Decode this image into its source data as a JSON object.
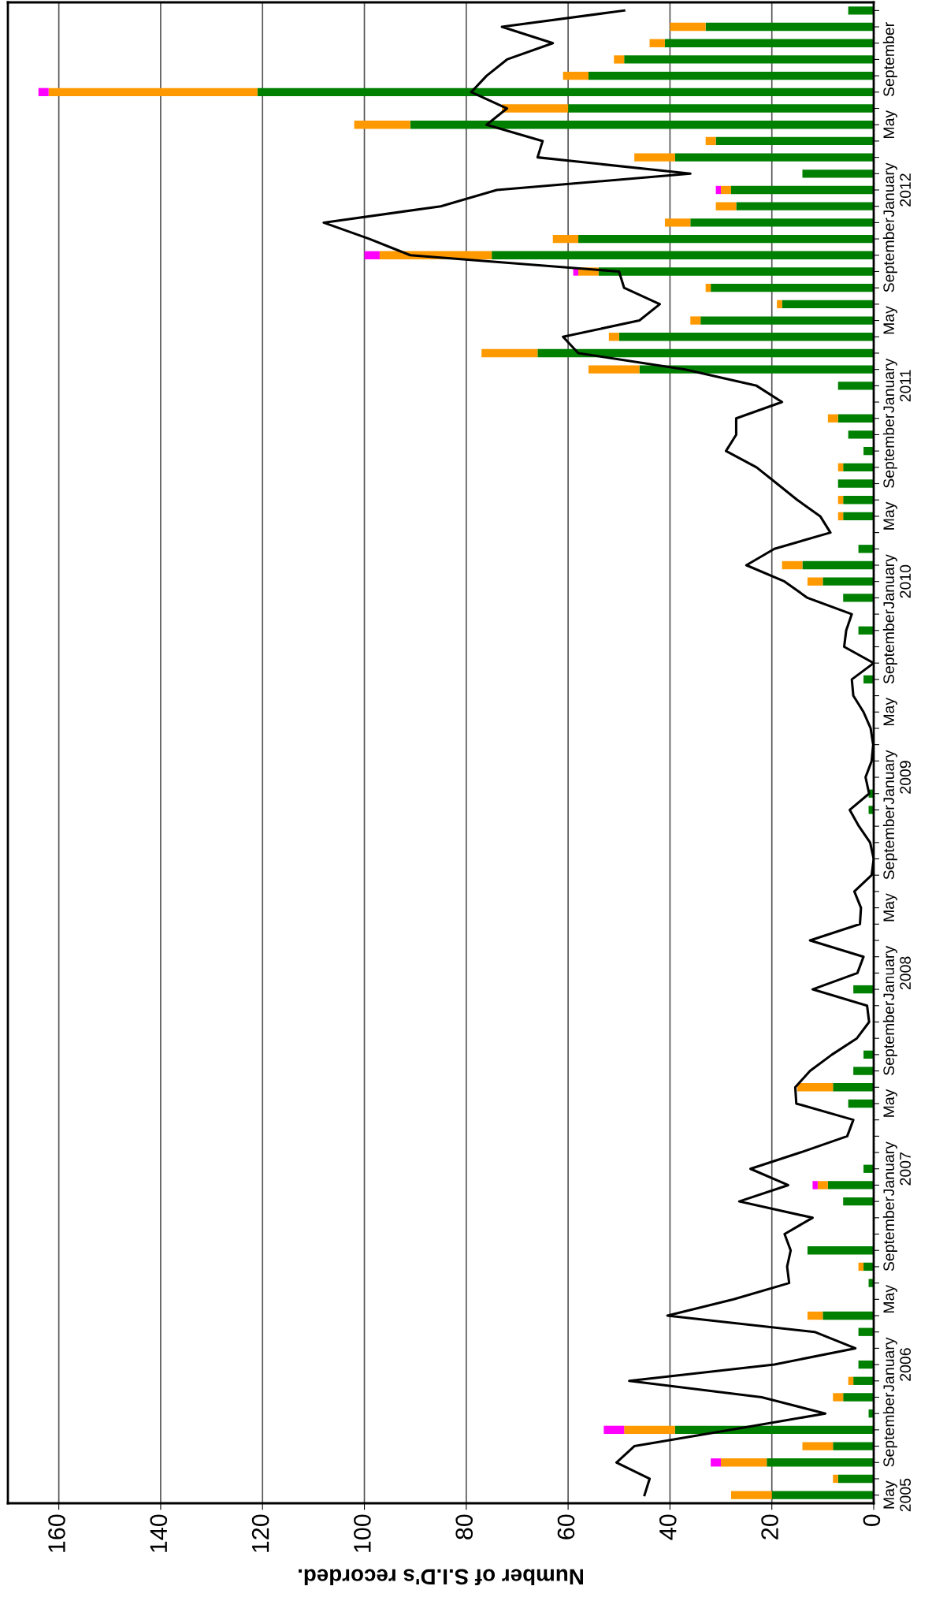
{
  "chart_data": {
    "type": "bar",
    "orientation": "horizontal",
    "stacked": true,
    "xlabel": "Number of S.I.D's recorded.",
    "categories": [
      null,
      null,
      null,
      "September",
      null,
      null,
      null,
      "May",
      null,
      null,
      null,
      "January\n2012",
      null,
      null,
      null,
      "September",
      null,
      null,
      null,
      "May",
      null,
      null,
      null,
      "January\n2011",
      null,
      null,
      null,
      "September",
      null,
      null,
      null,
      "May",
      null,
      null,
      null,
      "January\n2010",
      null,
      null,
      null,
      "September",
      null,
      null,
      null,
      "May",
      null,
      null,
      null,
      "January\n2009",
      null,
      null,
      null,
      "September",
      null,
      null,
      null,
      "May",
      null,
      null,
      null,
      "January\n2008",
      null,
      null,
      null,
      "September",
      null,
      null,
      null,
      "May",
      null,
      null,
      null,
      "January\n2007",
      null,
      null,
      null,
      "September",
      null,
      null,
      null,
      "May",
      null,
      null,
      null,
      "January\n2006",
      null,
      null,
      null,
      "September",
      null,
      null,
      null,
      "May\n2005"
    ],
    "series": [
      {
        "color": "#008000",
        "values": [
          5,
          33,
          41,
          49,
          56,
          121,
          60,
          91,
          31,
          39,
          14,
          28,
          27,
          36,
          58,
          75,
          54,
          32,
          18,
          34,
          50,
          66,
          46,
          7,
          null,
          7,
          5,
          2,
          6,
          7,
          6,
          6,
          null,
          3,
          14,
          10,
          6,
          null,
          3,
          null,
          null,
          2,
          null,
          null,
          null,
          null,
          null,
          null,
          1,
          1,
          null,
          null,
          null,
          null,
          null,
          null,
          null,
          null,
          null,
          null,
          4,
          null,
          null,
          null,
          2,
          4,
          8,
          5,
          null,
          null,
          null,
          2,
          9,
          6,
          null,
          null,
          13,
          2,
          1,
          null,
          10,
          3,
          null,
          3,
          4,
          6,
          1,
          39,
          8,
          21,
          7,
          20
        ]
      },
      {
        "color": "#ff9900",
        "values": [
          null,
          7,
          3,
          2,
          5,
          41,
          13,
          11,
          2,
          8,
          null,
          2,
          4,
          5,
          5,
          22,
          4,
          1,
          1,
          2,
          2,
          11,
          10,
          null,
          null,
          2,
          null,
          null,
          1,
          null,
          1,
          1,
          null,
          null,
          4,
          3,
          null,
          null,
          null,
          null,
          null,
          null,
          null,
          null,
          null,
          null,
          null,
          null,
          null,
          null,
          null,
          null,
          null,
          null,
          null,
          null,
          null,
          null,
          null,
          null,
          null,
          null,
          null,
          null,
          null,
          null,
          7,
          null,
          null,
          null,
          null,
          null,
          2,
          null,
          null,
          null,
          null,
          1,
          null,
          null,
          3,
          null,
          null,
          null,
          1,
          2,
          null,
          10,
          6,
          9,
          1,
          8
        ]
      },
      {
        "color": "#ff00ff",
        "values": [
          null,
          null,
          null,
          null,
          null,
          2,
          null,
          null,
          null,
          null,
          null,
          1,
          null,
          null,
          null,
          3,
          1,
          null,
          null,
          null,
          null,
          null,
          null,
          null,
          null,
          null,
          null,
          null,
          null,
          null,
          null,
          null,
          null,
          null,
          null,
          null,
          null,
          null,
          null,
          null,
          null,
          null,
          null,
          null,
          null,
          null,
          null,
          null,
          null,
          null,
          null,
          null,
          null,
          null,
          null,
          null,
          null,
          null,
          null,
          null,
          null,
          null,
          null,
          null,
          null,
          null,
          null,
          null,
          null,
          null,
          null,
          null,
          1,
          null,
          null,
          null,
          null,
          null,
          null,
          null,
          null,
          null,
          null,
          null,
          null,
          null,
          null,
          4,
          null,
          2,
          null,
          null
        ]
      },
      {
        "type": "line",
        "color": "#000000",
        "values": [
          49,
          73,
          63,
          72,
          76,
          79,
          72,
          76,
          65,
          66,
          36,
          74,
          85,
          108,
          99,
          91,
          50,
          49,
          42,
          46,
          61,
          58,
          37,
          23,
          18,
          27,
          27,
          29,
          23,
          19,
          15,
          10.5,
          8.5,
          19.5,
          25,
          17.5,
          13,
          4.3,
          5.4,
          5.8,
          0,
          4.3,
          4,
          2,
          0.6,
          0.1,
          0.4,
          1.6,
          0.9,
          4.7,
          2.9,
          0.7,
          0,
          0.4,
          3.8,
          2.5,
          2.7,
          12.5,
          2,
          3.2,
          12,
          1.3,
          0.9,
          3.3,
          8.2,
          12.5,
          15.4,
          15.2,
          4,
          5.2,
          14.4,
          24.2,
          16.8,
          26.4,
          12,
          17.5,
          16.3,
          17,
          16.6,
          27.5,
          40.5,
          11.6,
          3.6,
          19.5,
          48,
          22,
          9.5,
          28,
          47,
          50.5,
          44,
          45
        ]
      }
    ],
    "xlim": [
      170,
      0
    ],
    "xticks": [
      0,
      20,
      40,
      60,
      80,
      100,
      120,
      140,
      160
    ],
    "grid": "x"
  }
}
